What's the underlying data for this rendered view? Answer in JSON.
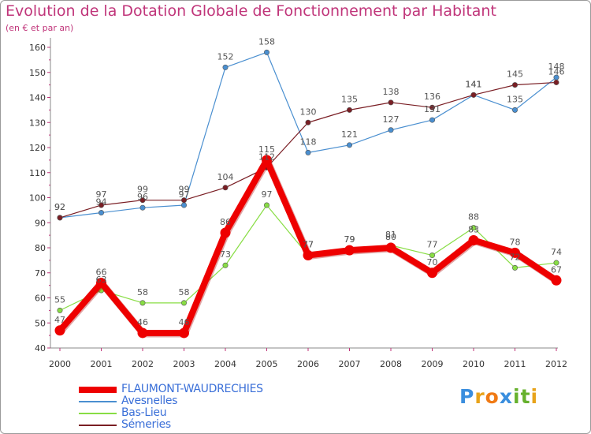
{
  "title": "Evolution de la Dotation Globale de Fonctionnement par Habitant",
  "subtitle": "(en € et par an)",
  "logo": {
    "text": "Proxiti",
    "letters": [
      "P",
      "r",
      "o",
      "x",
      "i",
      "t",
      "i"
    ],
    "colors": [
      "#3a8ede",
      "#e8a31a",
      "#f07a14",
      "#3a8ede",
      "#66b12d",
      "#66b12d",
      "#e8a31a"
    ]
  },
  "colors": {
    "title": "#c0357a",
    "legend_text": "#3a6fd8",
    "axis": "#888888",
    "grid_tick": "#c0357a",
    "label": "#555555"
  },
  "chart_data": {
    "type": "line",
    "title": "Evolution de la Dotation Globale de Fonctionnement par Habitant",
    "subtitle": "(en € et par an)",
    "xlabel": "",
    "ylabel": "",
    "x": [
      "2000",
      "2001",
      "2002",
      "2003",
      "2004",
      "2005",
      "2006",
      "2007",
      "2008",
      "2009",
      "2010",
      "2011",
      "2012"
    ],
    "ylim": [
      40,
      160
    ],
    "yticks": [
      40,
      50,
      60,
      70,
      80,
      90,
      100,
      110,
      120,
      130,
      140,
      150,
      160
    ],
    "grid": false,
    "legend_position": "bottom-left",
    "series": [
      {
        "name": "FLAUMONT-WAUDRECHIES",
        "color": "#ee0000",
        "values": [
          47,
          66,
          46,
          46,
          86,
          115,
          77,
          79,
          80,
          70,
          83,
          78,
          67
        ]
      },
      {
        "name": "Avesnelles",
        "color": "#4a8fd0",
        "values": [
          92,
          94,
          96,
          97,
          152,
          158,
          118,
          121,
          127,
          131,
          141,
          135,
          148
        ]
      },
      {
        "name": "Bas-Lieu",
        "color": "#88dd44",
        "values": [
          55,
          63,
          58,
          58,
          73,
          97,
          77,
          79,
          81,
          77,
          88,
          72,
          74
        ]
      },
      {
        "name": "Sémeries",
        "color": "#7a1e24",
        "values": [
          92,
          97,
          99,
          99,
          104,
          112,
          130,
          135,
          138,
          136,
          141,
          145,
          146
        ]
      }
    ]
  }
}
